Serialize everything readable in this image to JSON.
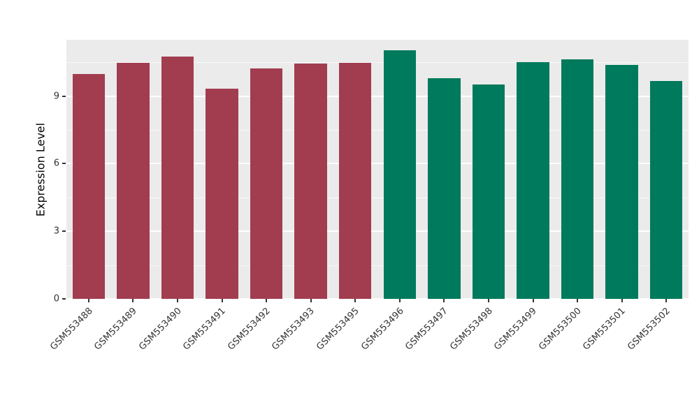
{
  "chart_data": {
    "type": "bar",
    "title": "",
    "xlabel": "",
    "ylabel": "Expression Level",
    "ylim": [
      0,
      11.5
    ],
    "yticks": [
      0,
      3,
      6,
      9
    ],
    "yticks_minor": [
      1.5,
      4.5,
      7.5,
      10.5
    ],
    "grid": "on",
    "legend": "none",
    "categories": [
      "GSM553488",
      "GSM553489",
      "GSM553490",
      "GSM553491",
      "GSM553492",
      "GSM553493",
      "GSM553495",
      "GSM553496",
      "GSM553497",
      "GSM553498",
      "GSM553499",
      "GSM553500",
      "GSM553501",
      "GSM553502"
    ],
    "values": [
      9.97,
      10.48,
      10.76,
      9.33,
      10.22,
      10.45,
      10.48,
      11.05,
      9.8,
      9.52,
      10.5,
      10.63,
      10.38,
      9.68
    ],
    "groups": [
      "A",
      "A",
      "A",
      "A",
      "A",
      "A",
      "A",
      "B",
      "B",
      "B",
      "B",
      "B",
      "B",
      "B"
    ],
    "group_colors": {
      "A": "#A13D4F",
      "B": "#007A5C"
    },
    "panel_background": "#EBEBEB",
    "grid_color": "#FFFFFF",
    "tick_color": "#333333",
    "text_color": "#333333"
  }
}
